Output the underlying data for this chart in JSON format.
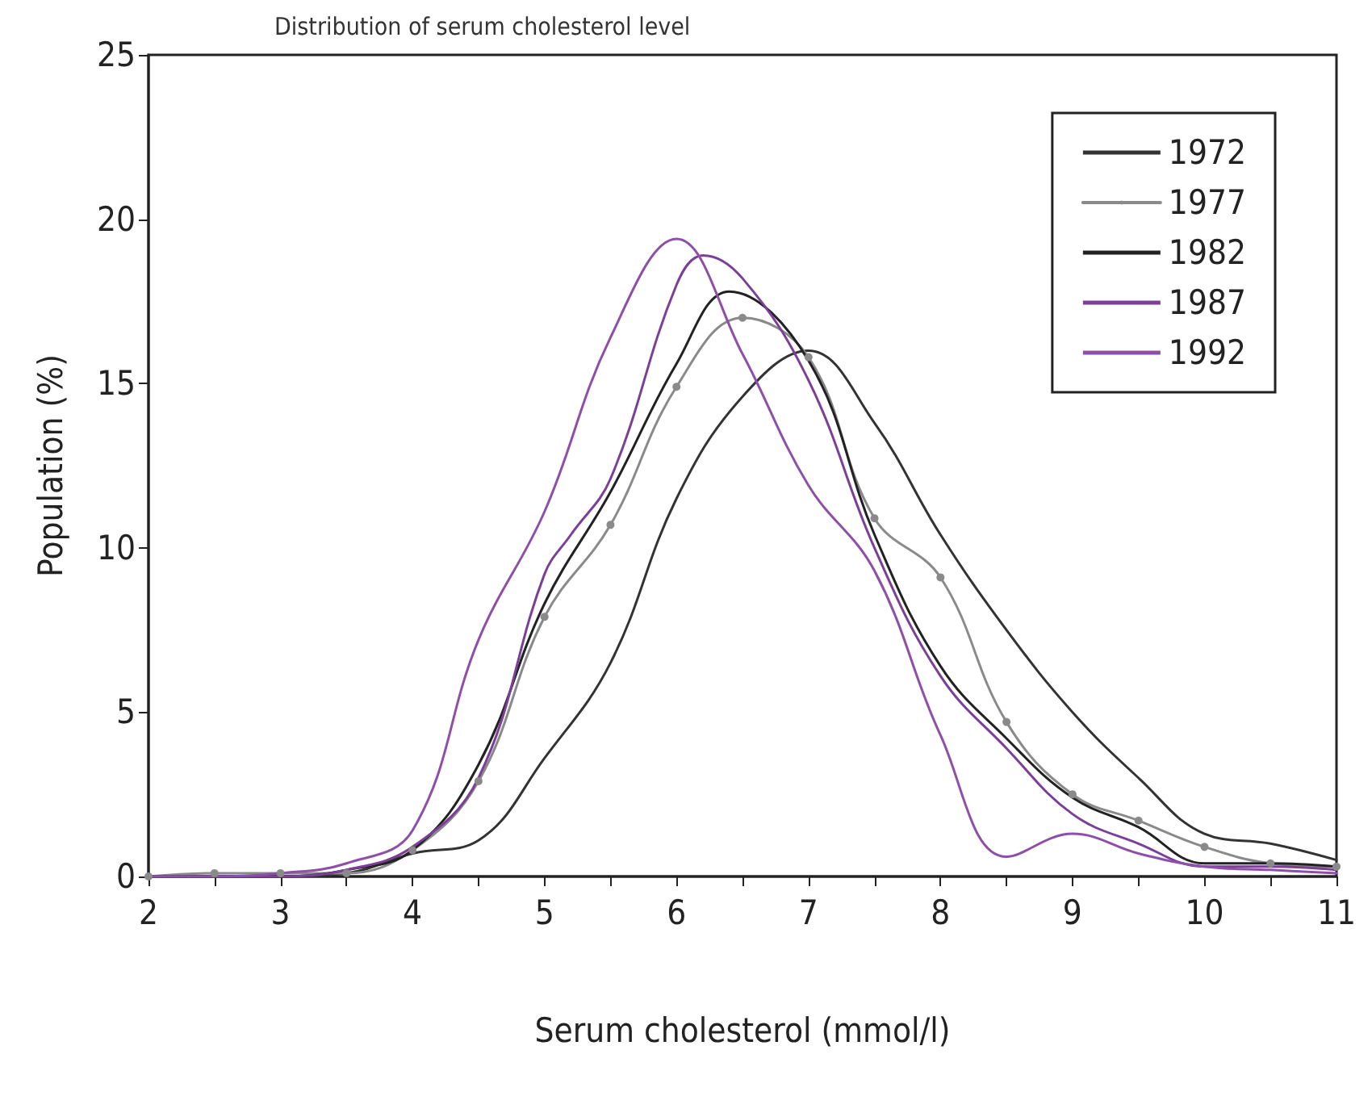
{
  "chart_data": {
    "type": "line",
    "title": "Distribution of serum cholesterol level",
    "xlabel": "Serum cholesterol (mmol/l)",
    "ylabel": "Population (%)",
    "xlim": [
      2,
      11
    ],
    "ylim": [
      0,
      25
    ],
    "xticks": [
      2,
      {
        "value": 2.5,
        "label": null
      },
      3,
      {
        "value": 3.5,
        "label": null
      },
      4,
      {
        "value": 4.5,
        "label": null
      },
      5,
      {
        "value": 5.5,
        "label": null
      },
      6,
      {
        "value": 6.5,
        "label": null
      },
      7,
      {
        "value": 7.5,
        "label": null
      },
      8,
      {
        "value": 8.5,
        "label": null
      },
      9,
      {
        "value": 9.5,
        "label": null
      },
      10,
      {
        "value": 10.5,
        "label": null
      },
      11
    ],
    "yticks": [
      0,
      5,
      10,
      15,
      20,
      25
    ],
    "grid": false,
    "legend": "top right",
    "marker": "none",
    "line_style": "solid",
    "series": [
      {
        "name": "1972",
        "color": "#333333",
        "x": [
          2,
          2.5,
          3,
          3.5,
          4,
          4.5,
          5,
          5.5,
          6,
          6.5,
          7,
          7.5,
          8,
          8.5,
          9,
          9.5,
          10,
          10.5,
          11
        ],
        "values": [
          0,
          0,
          0,
          0.1,
          0.7,
          1.1,
          3.6,
          6.5,
          11.5,
          14.6,
          16.0,
          13.8,
          10.4,
          7.5,
          5.0,
          3.0,
          1.3,
          1.0,
          0.5
        ]
      },
      {
        "name": "1977",
        "color": "#8a8a8a",
        "marker": "circle",
        "x": [
          2,
          2.5,
          3,
          3.5,
          4,
          4.5,
          5,
          5.5,
          6,
          6.5,
          7,
          7.5,
          8,
          8.5,
          9,
          9.5,
          10,
          10.5,
          11
        ],
        "values": [
          0,
          0.1,
          0.1,
          0.1,
          0.8,
          2.9,
          7.9,
          10.7,
          14.9,
          17.0,
          15.8,
          10.9,
          9.1,
          4.7,
          2.5,
          1.7,
          0.9,
          0.4,
          0.3
        ]
      },
      {
        "name": "1982",
        "color": "#222222",
        "x": [
          2,
          2.5,
          3,
          3.5,
          4,
          4.5,
          5,
          5.5,
          6,
          6.4,
          7,
          7.5,
          8,
          8.5,
          9,
          9.5,
          10,
          10.5,
          11
        ],
        "values": [
          0,
          0,
          0,
          0.2,
          0.8,
          3.4,
          8.3,
          11.7,
          15.6,
          17.8,
          15.7,
          10.4,
          6.4,
          4.2,
          2.4,
          1.5,
          0.4,
          0.4,
          0.3
        ]
      },
      {
        "name": "1987",
        "color": "#7b3f98",
        "x": [
          2,
          2.5,
          3,
          3.5,
          4,
          4.5,
          5,
          5.2,
          5.5,
          6,
          6.2,
          6.5,
          7,
          7.5,
          8,
          8.5,
          9,
          9.5,
          10,
          10.5,
          11
        ],
        "values": [
          0,
          0,
          0,
          0.2,
          0.9,
          3.0,
          9.2,
          10.4,
          12.1,
          18.0,
          18.9,
          18.2,
          15.1,
          10.0,
          6.1,
          3.9,
          1.9,
          1.0,
          0.3,
          0.3,
          0.2
        ]
      },
      {
        "name": "1992",
        "color": "#8e4fa8",
        "x": [
          2,
          2.5,
          3,
          3.5,
          4,
          4.5,
          5,
          5.5,
          6,
          6.5,
          7,
          7.5,
          8,
          8.5,
          9,
          9.5,
          10,
          10.5,
          11
        ],
        "values": [
          0,
          0,
          0.1,
          0.4,
          1.4,
          7.2,
          11.1,
          16.4,
          19.4,
          15.9,
          11.9,
          9.3,
          4.3,
          0.6,
          1.3,
          0.7,
          0.3,
          0.2,
          0.1
        ]
      }
    ]
  }
}
